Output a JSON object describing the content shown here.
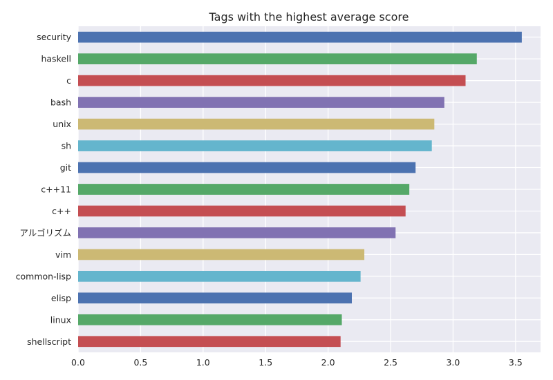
{
  "chart_data": {
    "type": "bar",
    "orientation": "horizontal",
    "title": "Tags with the highest average score",
    "xlabel": "",
    "ylabel": "",
    "xlim": [
      0,
      3.7
    ],
    "x_ticks": [
      "0.0",
      "0.5",
      "1.0",
      "1.5",
      "2.0",
      "2.5",
      "3.0",
      "3.5"
    ],
    "grid": true,
    "categories": [
      "security",
      "haskell",
      "c",
      "bash",
      "unix",
      "sh",
      "git",
      "c++11",
      "c++",
      "アルゴリズム",
      "vim",
      "common-lisp",
      "elisp",
      "linux",
      "shellscript"
    ],
    "values": [
      3.55,
      3.19,
      3.1,
      2.93,
      2.85,
      2.83,
      2.7,
      2.65,
      2.62,
      2.54,
      2.29,
      2.26,
      2.19,
      2.11,
      2.1
    ],
    "colors": [
      "#4c72b0",
      "#55a868",
      "#c44e52",
      "#8172b2",
      "#ccb974",
      "#64b5cd",
      "#4c72b0",
      "#55a868",
      "#c44e52",
      "#8172b2",
      "#ccb974",
      "#64b5cd",
      "#4c72b0",
      "#55a868",
      "#c44e52"
    ],
    "background_color": "#eaeaf2",
    "grid_color": "#ffffff"
  }
}
